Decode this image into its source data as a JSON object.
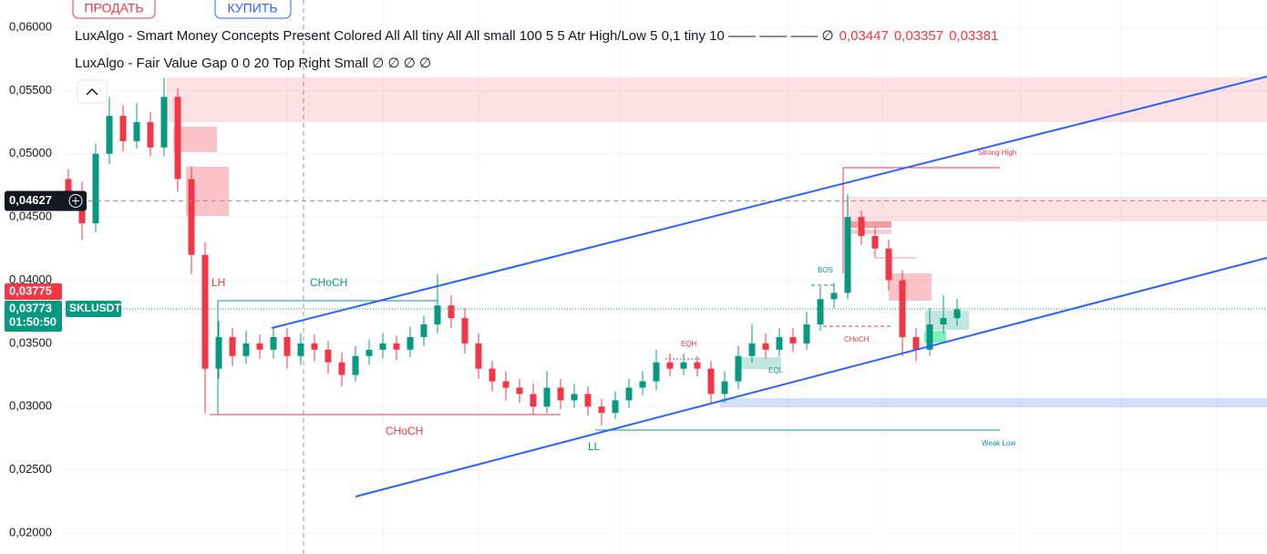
{
  "header": {
    "sell": "ПРОДАТЬ",
    "buy": "КУПИТЬ"
  },
  "indicators": [
    {
      "text": "LuxAlgo - Smart Money Concepts Present Colored All All tiny All All small 100 5 5 Atr High/Low 5 0,1 tiny 10 —— —— ——  ∅",
      "values": [
        "0,03447",
        "0,03357",
        "0,03381"
      ]
    },
    {
      "text": "LuxAlgo - Fair Value Gap 0 0 20 Top Right Small  ∅ ∅ ∅ ∅"
    }
  ],
  "chart_data": {
    "type": "candlestick",
    "symbol": "SKLUSDT",
    "countdown": "01:50:50",
    "up_color": "#089981",
    "down_color": "#f23645",
    "ylim": [
      0.02,
      0.06
    ],
    "yticks": [
      {
        "value": 0.02,
        "label": "0,02000"
      },
      {
        "value": 0.025,
        "label": "0,02500"
      },
      {
        "value": 0.03,
        "label": "0,03000"
      },
      {
        "value": 0.035,
        "label": "0,03500"
      },
      {
        "value": 0.04,
        "label": "0,04000"
      },
      {
        "value": 0.045,
        "label": "0,04500"
      },
      {
        "value": 0.05,
        "label": "0,05000"
      },
      {
        "value": 0.055,
        "label": "0,05500"
      },
      {
        "value": 0.06,
        "label": "0,06000"
      }
    ],
    "crosshair_price": {
      "value": 0.04627,
      "label": "0,04627"
    },
    "prev_price": {
      "value": 0.03775,
      "label": "0,03775"
    },
    "last_price": {
      "value": 0.03773,
      "label": "0,03773"
    },
    "annotations": [
      "LH",
      "CHoCH",
      "CHoCH",
      "LL",
      "EQH",
      "EQL",
      "BOS",
      "CHoCH",
      "Strong High",
      "Weak Low"
    ],
    "open": [
      0.048,
      0.047,
      0.0445,
      0.05,
      0.053,
      0.051,
      0.0525,
      0.0505,
      0.0545,
      0.048,
      0.042,
      0.033,
      0.0355,
      0.034,
      0.035,
      0.0345,
      0.0355,
      0.034,
      0.035,
      0.0345,
      0.0335,
      0.0325,
      0.034,
      0.0345,
      0.035,
      0.0345,
      0.0355,
      0.0365,
      0.038,
      0.037,
      0.035,
      0.033,
      0.032,
      0.0315,
      0.031,
      0.03,
      0.0315,
      0.0305,
      0.031,
      0.03,
      0.0295,
      0.0305,
      0.0315,
      0.032,
      0.0335,
      0.033,
      0.0335,
      0.033,
      0.031,
      0.032,
      0.034,
      0.035,
      0.0345,
      0.0355,
      0.035,
      0.0365,
      0.0385,
      0.039,
      0.045,
      0.0435,
      0.0425,
      0.04,
      0.0355,
      0.0345,
      0.0365,
      0.037
    ],
    "high": [
      0.0488,
      0.0478,
      0.0508,
      0.0545,
      0.0538,
      0.054,
      0.0533,
      0.056,
      0.0552,
      0.049,
      0.043,
      0.0368,
      0.0362,
      0.036,
      0.0357,
      0.0363,
      0.0362,
      0.0358,
      0.0357,
      0.0352,
      0.0343,
      0.0348,
      0.0353,
      0.0358,
      0.0356,
      0.0363,
      0.0372,
      0.0405,
      0.0388,
      0.0378,
      0.0358,
      0.0336,
      0.0328,
      0.0322,
      0.0318,
      0.0328,
      0.0322,
      0.0318,
      0.0316,
      0.0306,
      0.0312,
      0.0322,
      0.0328,
      0.0345,
      0.0342,
      0.0342,
      0.034,
      0.0336,
      0.0328,
      0.0348,
      0.0365,
      0.0358,
      0.0362,
      0.0362,
      0.0375,
      0.0395,
      0.0398,
      0.0468,
      0.0455,
      0.0442,
      0.0432,
      0.0408,
      0.0362,
      0.0378,
      0.0388,
      0.0385
    ],
    "low": [
      0.0462,
      0.0432,
      0.0438,
      0.0492,
      0.0502,
      0.0504,
      0.0498,
      0.0498,
      0.047,
      0.0405,
      0.0295,
      0.0322,
      0.0332,
      0.0334,
      0.0338,
      0.0338,
      0.033,
      0.0333,
      0.0336,
      0.0326,
      0.0316,
      0.032,
      0.0333,
      0.0338,
      0.0337,
      0.0339,
      0.0348,
      0.0358,
      0.0362,
      0.0342,
      0.0322,
      0.0312,
      0.0305,
      0.0303,
      0.0294,
      0.0295,
      0.0298,
      0.0299,
      0.0293,
      0.0285,
      0.029,
      0.0299,
      0.0309,
      0.0313,
      0.0324,
      0.0325,
      0.0324,
      0.0302,
      0.0303,
      0.0314,
      0.0335,
      0.0338,
      0.034,
      0.0343,
      0.0345,
      0.036,
      0.0378,
      0.0385,
      0.0428,
      0.0418,
      0.0392,
      0.034,
      0.0336,
      0.034,
      0.0358,
      0.0364
    ],
    "close": [
      0.047,
      0.0445,
      0.05,
      0.053,
      0.051,
      0.0525,
      0.0505,
      0.0545,
      0.048,
      0.042,
      0.033,
      0.0355,
      0.034,
      0.035,
      0.0345,
      0.0355,
      0.034,
      0.035,
      0.0345,
      0.0335,
      0.0325,
      0.034,
      0.0345,
      0.035,
      0.0345,
      0.0355,
      0.0365,
      0.038,
      0.037,
      0.035,
      0.033,
      0.032,
      0.0315,
      0.031,
      0.03,
      0.0315,
      0.0305,
      0.031,
      0.03,
      0.0295,
      0.0305,
      0.0315,
      0.032,
      0.0335,
      0.033,
      0.0335,
      0.033,
      0.031,
      0.032,
      0.034,
      0.035,
      0.0345,
      0.0355,
      0.035,
      0.0365,
      0.0385,
      0.039,
      0.045,
      0.0435,
      0.0425,
      0.04,
      0.0355,
      0.0345,
      0.0365,
      0.037,
      0.0377
    ]
  }
}
